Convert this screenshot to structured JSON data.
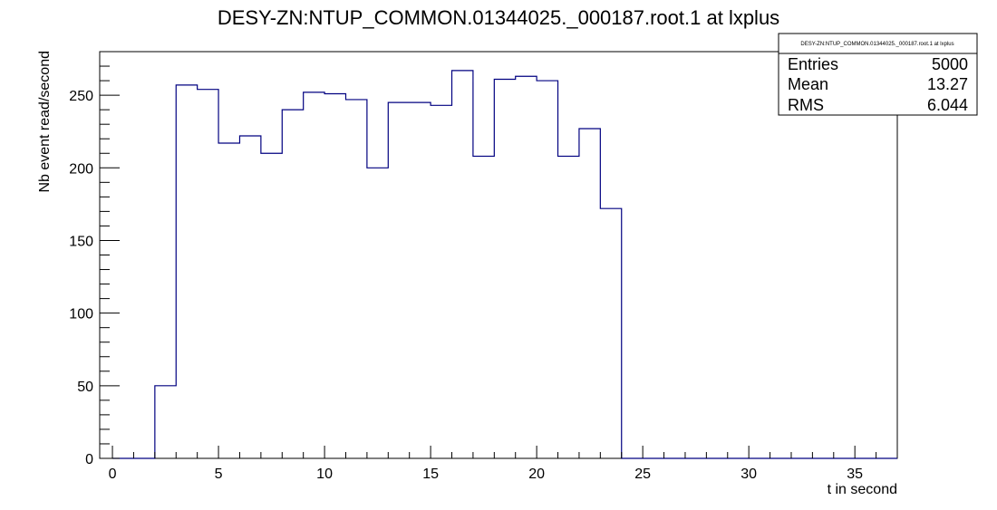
{
  "chart_data": {
    "type": "histogram",
    "title": "DESY-ZN:NTUP_COMMON.01344025._000187.root.1 at lxplus",
    "xlabel": "t in second",
    "ylabel": "Nb event read/second",
    "xlim": [
      -0.6,
      37.0
    ],
    "ylim": [
      0,
      280
    ],
    "x_ticks": [
      0,
      5,
      10,
      15,
      20,
      25,
      30,
      35
    ],
    "y_ticks": [
      0,
      50,
      100,
      150,
      200,
      250
    ],
    "bin_edges": [
      0,
      1,
      2,
      3,
      4,
      5,
      6,
      7,
      8,
      9,
      10,
      11,
      12,
      13,
      14,
      15,
      16,
      17,
      18,
      19,
      20,
      21,
      22,
      23,
      24,
      25,
      26,
      27,
      28,
      29,
      30,
      31,
      32,
      33,
      34,
      35,
      36,
      37
    ],
    "values": [
      0,
      0,
      50,
      257,
      254,
      217,
      222,
      210,
      240,
      252,
      251,
      247,
      200,
      245,
      245,
      243,
      267,
      208,
      261,
      263,
      260,
      208,
      227,
      172,
      0,
      0,
      0,
      0,
      0,
      0,
      0,
      0,
      0,
      0,
      0,
      0,
      0
    ],
    "line_color": "#000080",
    "grid": false,
    "stats_box": {
      "title": "DESY-ZN:NTUP_COMMON.01344025._000187.root.1 at lxplus",
      "rows": [
        {
          "label": "Entries",
          "value": "5000"
        },
        {
          "label": "Mean",
          "value": "13.27"
        },
        {
          "label": "RMS",
          "value": "6.044"
        }
      ],
      "placement": "top-right"
    }
  }
}
